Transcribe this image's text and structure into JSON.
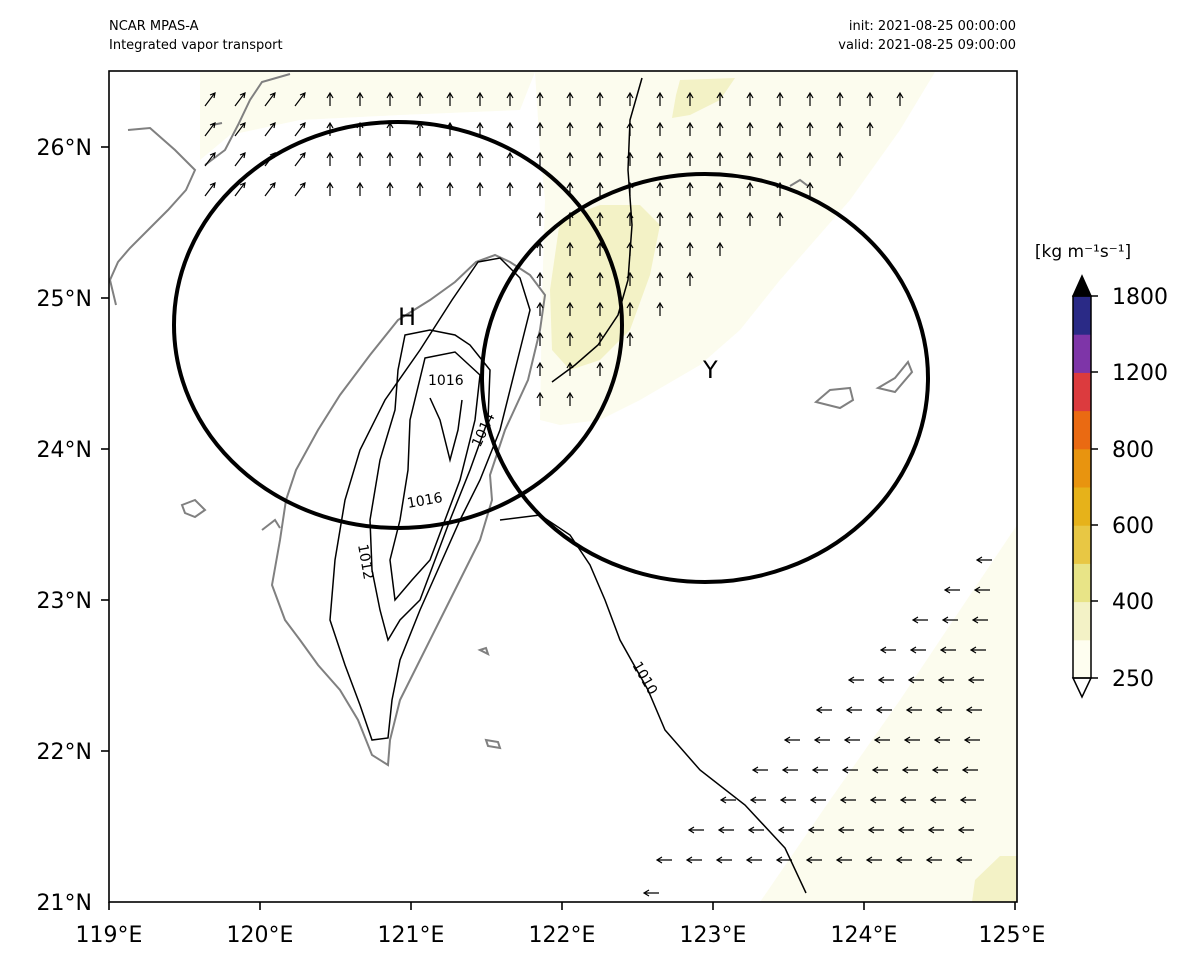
{
  "header": {
    "model": "NCAR MPAS-A",
    "field": "Integrated vapor transport",
    "init": "init: 2021-08-25 00:00:00",
    "valid": "valid: 2021-08-25 09:00:00"
  },
  "map": {
    "lon_range": [
      119,
      125
    ],
    "lat_range": [
      21,
      26.5
    ],
    "lon_ticks": [
      "119°E",
      "120°E",
      "121°E",
      "122°E",
      "123°E",
      "124°E",
      "125°E"
    ],
    "lat_ticks": [
      "21°N",
      "22°N",
      "23°N",
      "24°N",
      "25°N",
      "26°N"
    ],
    "circles": [
      {
        "label": "H",
        "center_lon": 120.9,
        "center_lat": 24.85,
        "radius_deg_lon": 1.48,
        "radius_deg_lat": 1.35
      },
      {
        "label": "Y",
        "center_lon": 122.93,
        "center_lat": 24.47,
        "radius_deg_lon": 1.48,
        "radius_deg_lat": 1.35
      }
    ],
    "isobar_labels": [
      "1016",
      "1014",
      "1016",
      "1012",
      "1010"
    ],
    "arrow_regions": [
      "northward",
      "westward"
    ]
  },
  "colorbar": {
    "title": "[kg m⁻¹s⁻¹]",
    "tick_labels": [
      "1800",
      "1200",
      "800",
      "600",
      "400",
      "250"
    ],
    "levels": [
      250,
      300,
      400,
      500,
      600,
      700,
      800,
      1000,
      1200,
      1500,
      1800
    ],
    "colors": [
      "#fefef0",
      "#f3f2c6",
      "#e8e487",
      "#e8c744",
      "#e6b21a",
      "#e8940f",
      "#ea6a12",
      "#dc3b3e",
      "#7e35a8",
      "#2a2a86"
    ],
    "extend_color": "#000000"
  },
  "colors": {
    "ivt_low": "#fcfcee",
    "ivt_mid": "#f3f2c6",
    "coast": "#808080",
    "contour": "#000000"
  }
}
